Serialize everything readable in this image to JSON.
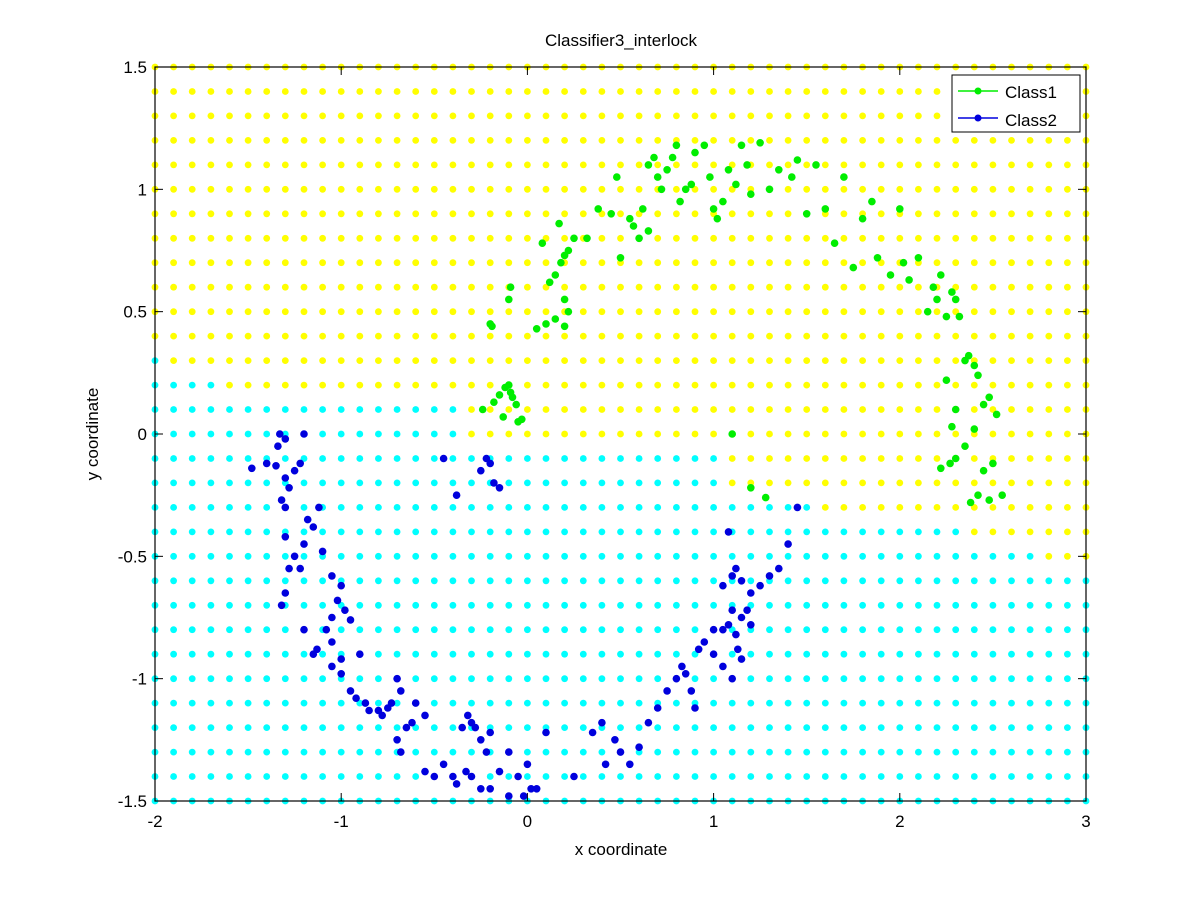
{
  "chart_data": {
    "type": "scatter",
    "title": "Classifier3_interlock",
    "xlabel": "x coordinate",
    "ylabel": "y coordinate",
    "xlim": [
      -2,
      3
    ],
    "ylim": [
      -1.5,
      1.5
    ],
    "xticks": [
      -2,
      -1,
      0,
      1,
      2,
      3
    ],
    "xtick_labels": [
      "-2",
      "-1",
      "0",
      "1",
      "2",
      "3"
    ],
    "yticks": [
      -1.5,
      -1,
      -0.5,
      0,
      0.5,
      1,
      1.5
    ],
    "ytick_labels": [
      "-1.5",
      "-1",
      "-0.5",
      "0",
      "0.5",
      "1",
      "1.5"
    ],
    "grid": false,
    "legend_position": "top-right",
    "background_grid": {
      "x_start": -2,
      "x_step": 0.1,
      "x_count": 51,
      "y_start": -1.5,
      "y_step": 0.1,
      "y_count": 31,
      "class1_region_color": "#ffff00",
      "class2_region_color": "#00ffff",
      "boundary_y": [
        0.35,
        0.25,
        0.25,
        0.25,
        0.15,
        0.15,
        0.15,
        0.15,
        0.15,
        0.15,
        0.15,
        0.15,
        0.15,
        0.15,
        0.15,
        0.15,
        0.15,
        -0.05,
        -0.05,
        -0.05,
        -0.05,
        -0.05,
        -0.05,
        -0.05,
        -0.05,
        -0.05,
        -0.05,
        -0.05,
        -0.05,
        -0.05,
        -0.05,
        -0.25,
        -0.25,
        -0.25,
        -0.25,
        -0.25,
        -0.35,
        -0.35,
        -0.35,
        -0.35,
        -0.35,
        -0.35,
        -0.35,
        -0.35,
        -0.45,
        -0.45,
        -0.45,
        -0.45,
        -0.55,
        -0.55,
        -0.55
      ]
    },
    "series": [
      {
        "name": "Class1",
        "color": "#00ee00",
        "points": [
          [
            -0.24,
            0.1
          ],
          [
            -0.18,
            0.13
          ],
          [
            -0.15,
            0.16
          ],
          [
            -0.12,
            0.19
          ],
          [
            -0.1,
            0.2
          ],
          [
            -0.09,
            0.17
          ],
          [
            -0.08,
            0.15
          ],
          [
            -0.06,
            0.12
          ],
          [
            -0.05,
            0.05
          ],
          [
            -0.03,
            0.06
          ],
          [
            -0.13,
            0.07
          ],
          [
            -0.2,
            0.45
          ],
          [
            -0.19,
            0.44
          ],
          [
            -0.1,
            0.55
          ],
          [
            -0.09,
            0.6
          ],
          [
            0.05,
            0.43
          ],
          [
            0.1,
            0.45
          ],
          [
            0.15,
            0.47
          ],
          [
            0.2,
            0.44
          ],
          [
            0.2,
            0.55
          ],
          [
            0.22,
            0.5
          ],
          [
            0.08,
            0.78
          ],
          [
            0.12,
            0.62
          ],
          [
            0.15,
            0.65
          ],
          [
            0.18,
            0.7
          ],
          [
            0.2,
            0.73
          ],
          [
            0.22,
            0.75
          ],
          [
            0.17,
            0.86
          ],
          [
            0.25,
            0.8
          ],
          [
            0.32,
            0.8
          ],
          [
            0.38,
            0.92
          ],
          [
            0.45,
            0.9
          ],
          [
            0.48,
            1.05
          ],
          [
            0.5,
            0.72
          ],
          [
            0.55,
            0.88
          ],
          [
            0.57,
            0.85
          ],
          [
            0.6,
            0.8
          ],
          [
            0.62,
            0.92
          ],
          [
            0.65,
            0.83
          ],
          [
            0.65,
            1.1
          ],
          [
            0.68,
            1.13
          ],
          [
            0.7,
            1.05
          ],
          [
            0.72,
            1.0
          ],
          [
            0.75,
            1.08
          ],
          [
            0.78,
            1.13
          ],
          [
            0.8,
            1.18
          ],
          [
            0.82,
            0.95
          ],
          [
            0.85,
            1.0
          ],
          [
            0.88,
            1.02
          ],
          [
            0.9,
            1.15
          ],
          [
            0.95,
            1.18
          ],
          [
            0.98,
            1.05
          ],
          [
            1.0,
            0.92
          ],
          [
            1.02,
            0.88
          ],
          [
            1.05,
            0.95
          ],
          [
            1.08,
            1.08
          ],
          [
            1.12,
            1.02
          ],
          [
            1.15,
            1.18
          ],
          [
            1.18,
            1.1
          ],
          [
            1.2,
            0.98
          ],
          [
            1.25,
            1.19
          ],
          [
            1.3,
            1.0
          ],
          [
            1.35,
            1.08
          ],
          [
            1.42,
            1.05
          ],
          [
            1.45,
            1.12
          ],
          [
            1.5,
            0.9
          ],
          [
            1.55,
            1.1
          ],
          [
            1.6,
            0.92
          ],
          [
            1.65,
            0.78
          ],
          [
            1.7,
            1.05
          ],
          [
            1.75,
            0.68
          ],
          [
            1.8,
            0.88
          ],
          [
            1.85,
            0.95
          ],
          [
            1.88,
            0.72
          ],
          [
            1.95,
            0.65
          ],
          [
            2.0,
            0.92
          ],
          [
            2.02,
            0.7
          ],
          [
            2.05,
            0.63
          ],
          [
            2.1,
            0.72
          ],
          [
            2.15,
            0.5
          ],
          [
            2.18,
            0.6
          ],
          [
            2.2,
            0.55
          ],
          [
            2.22,
            0.65
          ],
          [
            2.25,
            0.48
          ],
          [
            2.28,
            0.58
          ],
          [
            2.3,
            0.55
          ],
          [
            2.32,
            0.48
          ],
          [
            2.35,
            0.3
          ],
          [
            2.37,
            0.32
          ],
          [
            2.4,
            0.28
          ],
          [
            2.42,
            0.24
          ],
          [
            2.45,
            0.12
          ],
          [
            2.48,
            0.15
          ],
          [
            2.52,
            0.08
          ],
          [
            2.3,
            0.1
          ],
          [
            2.25,
            0.22
          ],
          [
            2.28,
            0.03
          ],
          [
            2.4,
            0.02
          ],
          [
            2.35,
            -0.05
          ],
          [
            2.3,
            -0.1
          ],
          [
            2.27,
            -0.12
          ],
          [
            2.22,
            -0.14
          ],
          [
            2.45,
            -0.15
          ],
          [
            2.5,
            -0.12
          ],
          [
            2.42,
            -0.25
          ],
          [
            2.48,
            -0.27
          ],
          [
            2.55,
            -0.25
          ],
          [
            2.38,
            -0.28
          ],
          [
            1.1,
            0.0
          ],
          [
            1.2,
            -0.22
          ],
          [
            1.28,
            -0.26
          ]
        ]
      },
      {
        "name": "Class2",
        "color": "#0000dd",
        "points": [
          [
            -1.33,
            0.0
          ],
          [
            -1.3,
            -0.02
          ],
          [
            -1.34,
            -0.05
          ],
          [
            -1.4,
            -0.12
          ],
          [
            -1.48,
            -0.14
          ],
          [
            -1.35,
            -0.13
          ],
          [
            -1.3,
            -0.18
          ],
          [
            -1.28,
            -0.22
          ],
          [
            -1.25,
            -0.15
          ],
          [
            -1.22,
            -0.12
          ],
          [
            -1.2,
            0.0
          ],
          [
            -1.32,
            -0.27
          ],
          [
            -1.3,
            -0.3
          ],
          [
            -1.18,
            -0.35
          ],
          [
            -1.15,
            -0.38
          ],
          [
            -1.12,
            -0.3
          ],
          [
            -1.2,
            -0.45
          ],
          [
            -1.25,
            -0.5
          ],
          [
            -1.28,
            -0.55
          ],
          [
            -1.22,
            -0.55
          ],
          [
            -1.3,
            -0.65
          ],
          [
            -1.32,
            -0.7
          ],
          [
            -1.1,
            -0.48
          ],
          [
            -1.05,
            -0.58
          ],
          [
            -1.0,
            -0.62
          ],
          [
            -1.02,
            -0.68
          ],
          [
            -0.98,
            -0.72
          ],
          [
            -0.95,
            -0.76
          ],
          [
            -1.05,
            -0.75
          ],
          [
            -1.08,
            -0.8
          ],
          [
            -1.2,
            -0.8
          ],
          [
            -1.13,
            -0.88
          ],
          [
            -1.15,
            -0.9
          ],
          [
            -1.05,
            -0.85
          ],
          [
            -1.0,
            -0.92
          ],
          [
            -0.9,
            -0.9
          ],
          [
            -1.0,
            -0.98
          ],
          [
            -1.05,
            -0.95
          ],
          [
            -0.95,
            -1.05
          ],
          [
            -0.92,
            -1.08
          ],
          [
            -0.87,
            -1.1
          ],
          [
            -0.85,
            -1.13
          ],
          [
            -0.8,
            -1.13
          ],
          [
            -0.78,
            -1.15
          ],
          [
            -0.75,
            -1.12
          ],
          [
            -0.73,
            -1.1
          ],
          [
            -0.7,
            -1.0
          ],
          [
            -0.68,
            -1.05
          ],
          [
            -0.6,
            -1.1
          ],
          [
            -0.62,
            -1.18
          ],
          [
            -0.55,
            -1.15
          ],
          [
            -0.65,
            -1.2
          ],
          [
            -0.7,
            -1.25
          ],
          [
            -0.68,
            -1.3
          ],
          [
            -0.55,
            -1.38
          ],
          [
            -0.5,
            -1.4
          ],
          [
            -0.45,
            -1.35
          ],
          [
            -0.4,
            -1.4
          ],
          [
            -0.38,
            -1.43
          ],
          [
            -0.33,
            -1.38
          ],
          [
            -0.3,
            -1.4
          ],
          [
            -0.35,
            -1.2
          ],
          [
            -0.32,
            -1.15
          ],
          [
            -0.3,
            -1.18
          ],
          [
            -0.28,
            -1.2
          ],
          [
            -0.25,
            -1.25
          ],
          [
            -0.22,
            -1.3
          ],
          [
            -0.2,
            -1.22
          ],
          [
            -0.15,
            -1.38
          ],
          [
            -0.1,
            -1.3
          ],
          [
            -0.05,
            -1.4
          ],
          [
            0.0,
            -1.35
          ],
          [
            0.02,
            -1.45
          ],
          [
            0.05,
            -1.45
          ],
          [
            -0.02,
            -1.48
          ],
          [
            -0.1,
            -1.48
          ],
          [
            -0.2,
            -1.45
          ],
          [
            -0.25,
            -1.45
          ],
          [
            0.1,
            -1.22
          ],
          [
            0.25,
            -1.4
          ],
          [
            0.35,
            -1.22
          ],
          [
            0.4,
            -1.18
          ],
          [
            0.42,
            -1.35
          ],
          [
            0.47,
            -1.25
          ],
          [
            0.5,
            -1.3
          ],
          [
            0.55,
            -1.35
          ],
          [
            0.6,
            -1.28
          ],
          [
            0.65,
            -1.18
          ],
          [
            0.7,
            -1.12
          ],
          [
            0.75,
            -1.05
          ],
          [
            0.8,
            -1.0
          ],
          [
            0.83,
            -0.95
          ],
          [
            0.85,
            -0.98
          ],
          [
            0.88,
            -1.05
          ],
          [
            0.9,
            -1.12
          ],
          [
            0.92,
            -0.88
          ],
          [
            0.95,
            -0.85
          ],
          [
            1.0,
            -0.8
          ],
          [
            1.05,
            -0.8
          ],
          [
            1.08,
            -0.78
          ],
          [
            1.1,
            -0.72
          ],
          [
            1.12,
            -0.82
          ],
          [
            1.15,
            -0.75
          ],
          [
            1.18,
            -0.72
          ],
          [
            1.2,
            -0.78
          ],
          [
            1.0,
            -0.9
          ],
          [
            1.05,
            -0.95
          ],
          [
            1.1,
            -1.0
          ],
          [
            1.13,
            -0.88
          ],
          [
            1.15,
            -0.92
          ],
          [
            1.1,
            -0.58
          ],
          [
            1.15,
            -0.6
          ],
          [
            1.2,
            -0.65
          ],
          [
            1.25,
            -0.62
          ],
          [
            1.3,
            -0.58
          ],
          [
            1.35,
            -0.55
          ],
          [
            1.4,
            -0.45
          ],
          [
            1.45,
            -0.3
          ],
          [
            1.05,
            -0.62
          ],
          [
            1.08,
            -0.4
          ],
          [
            1.12,
            -0.55
          ],
          [
            -0.22,
            -0.1
          ],
          [
            -0.2,
            -0.12
          ],
          [
            -0.25,
            -0.15
          ],
          [
            -0.18,
            -0.2
          ],
          [
            -0.15,
            -0.22
          ],
          [
            -0.38,
            -0.25
          ],
          [
            -0.45,
            -0.1
          ],
          [
            -1.3,
            -0.42
          ]
        ]
      }
    ]
  }
}
